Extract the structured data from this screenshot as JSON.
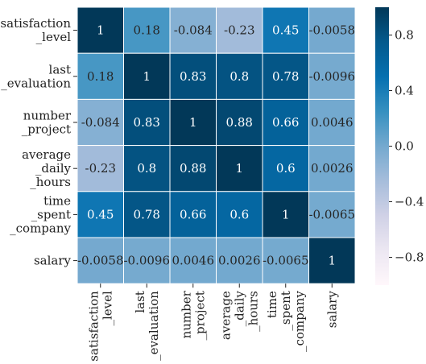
{
  "chart_data": {
    "type": "heatmap",
    "title": "",
    "row_labels": [
      [
        "satisfaction",
        "_level"
      ],
      [
        "last",
        "_evaluation"
      ],
      [
        "number",
        "_project"
      ],
      [
        "average",
        "_daily",
        "_hours"
      ],
      [
        "time",
        "_spent",
        "_company"
      ],
      [
        "salary"
      ]
    ],
    "col_labels": [
      [
        "satisfaction",
        "_level"
      ],
      [
        "last",
        "_evaluation"
      ],
      [
        "number",
        "_project"
      ],
      [
        "average",
        "_daily",
        "_hours"
      ],
      [
        "time",
        "_spent",
        "_company"
      ],
      [
        "salary"
      ]
    ],
    "values": [
      [
        1,
        0.18,
        -0.084,
        -0.23,
        0.45,
        -0.0058
      ],
      [
        0.18,
        1,
        0.83,
        0.8,
        0.78,
        -0.0096
      ],
      [
        -0.084,
        0.83,
        1,
        0.88,
        0.66,
        0.0046
      ],
      [
        -0.23,
        0.8,
        0.88,
        1,
        0.6,
        0.0026
      ],
      [
        0.45,
        0.78,
        0.66,
        0.6,
        1,
        -0.0065
      ],
      [
        -0.0058,
        -0.0096,
        0.0046,
        0.0026,
        -0.0065,
        1
      ]
    ],
    "value_labels": [
      [
        "1",
        "0.18",
        "-0.084",
        "-0.23",
        "0.45",
        "-0.0058"
      ],
      [
        "0.18",
        "1",
        "0.83",
        "0.8",
        "0.78",
        "-0.0096"
      ],
      [
        "-0.084",
        "0.83",
        "1",
        "0.88",
        "0.66",
        "0.0046"
      ],
      [
        "-0.23",
        "0.8",
        "0.88",
        "1",
        "0.6",
        "0.0026"
      ],
      [
        "0.45",
        "0.78",
        "0.66",
        "0.6",
        "1",
        "-0.0065"
      ],
      [
        "-0.0058",
        "-0.0096",
        "0.0046",
        "0.0026",
        "-0.0065",
        "1"
      ]
    ],
    "vmin": -1,
    "vmax": 1,
    "colormap": "PuBu",
    "colormap_stops": [
      "#fff7fb",
      "#ece7f2",
      "#d0d1e6",
      "#a6bddb",
      "#74a9cf",
      "#3690c0",
      "#0570b0",
      "#045a8d",
      "#023858"
    ],
    "colorbar": {
      "ticks": [
        0.8,
        0.4,
        0.0,
        -0.4,
        -0.8
      ],
      "tick_labels": [
        "0.8",
        "0.4",
        "0.0",
        "−0.4",
        "−0.8"
      ]
    },
    "annotation_colors": {
      "light": "#ffffff",
      "dark": "#262626"
    },
    "grid_line_color": "#ffffff"
  }
}
